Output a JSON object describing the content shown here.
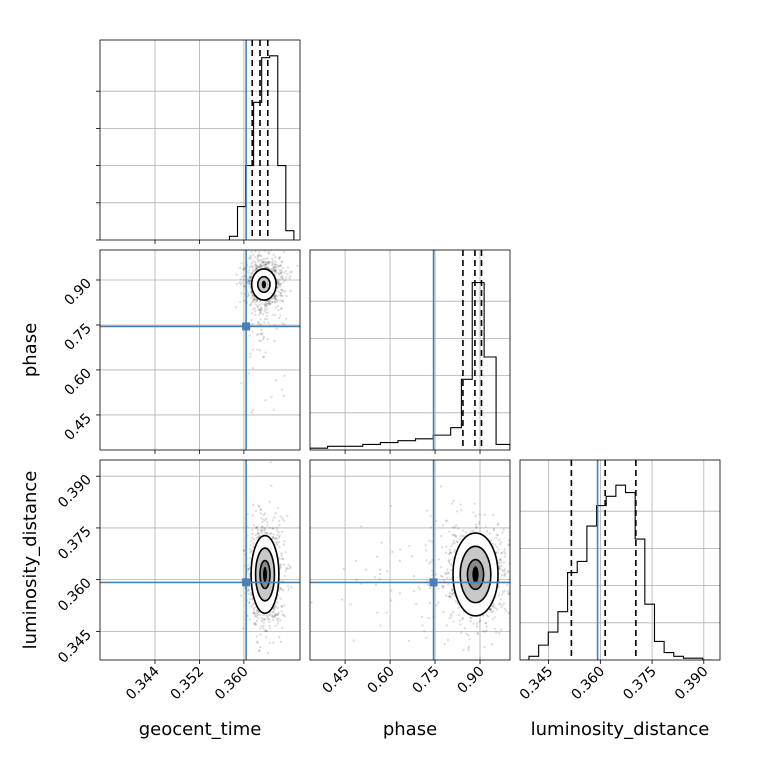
{
  "chart_data": {
    "type": "corner",
    "parameters": [
      "geocent_time",
      "phase",
      "luminosity_distance"
    ],
    "axis_labels": {
      "geocent_time": "geocent_time",
      "phase": "phase",
      "luminosity_distance": "luminosity_distance"
    },
    "ranges": {
      "geocent_time": [
        0.3341,
        0.3701
      ],
      "phase": [
        0.333,
        1.0
      ],
      "luminosity_distance": [
        0.3367,
        0.3947
      ]
    },
    "ticks": {
      "geocent_time": [
        0.344,
        0.352,
        0.36
      ],
      "phase": [
        0.45,
        0.6,
        0.75,
        0.9
      ],
      "luminosity_distance": [
        0.345,
        0.36,
        0.375,
        0.39
      ]
    },
    "tick_labels": {
      "geocent_time": [
        "0.344",
        "0.352",
        "0.360"
      ],
      "phase": [
        "0.45",
        "0.60",
        "0.75",
        "0.90"
      ],
      "luminosity_distance": [
        "0.345",
        "0.360",
        "0.375",
        "0.390"
      ]
    },
    "truths": {
      "geocent_time": 0.3604,
      "phase": 0.745,
      "luminosity_distance": 0.3592
    },
    "quantiles": {
      "geocent_time": [
        0.3615,
        0.3629,
        0.3643
      ],
      "phase": [
        0.843,
        0.883,
        0.905
      ],
      "luminosity_distance": [
        0.3516,
        0.3614,
        0.3703
      ]
    },
    "histograms": {
      "geocent_time": {
        "edges": [
          0.3574,
          0.35885,
          0.3603,
          0.36175,
          0.3632,
          0.36465,
          0.3661,
          0.36755,
          0.369
        ],
        "counts": [
          0.02,
          0.18,
          0.4,
          0.74,
          0.98,
          0.99,
          0.4,
          0.05
        ]
      },
      "phase": {
        "edges": [
          0.333,
          0.3917,
          0.4503,
          0.509,
          0.5676,
          0.6263,
          0.6849,
          0.7436,
          0.8022,
          0.8379,
          0.8741,
          0.9137,
          0.9536,
          1.0
        ],
        "counts": [
          0.01,
          0.02,
          0.02,
          0.03,
          0.04,
          0.05,
          0.06,
          0.08,
          0.12,
          0.38,
          0.9,
          0.5,
          0.03
        ]
      },
      "luminosity_distance": {
        "edges": [
          0.3367,
          0.3393,
          0.3421,
          0.3449,
          0.3477,
          0.3505,
          0.3533,
          0.3561,
          0.3589,
          0.3617,
          0.3645,
          0.3673,
          0.3701,
          0.3729,
          0.3757,
          0.3785,
          0.3813,
          0.3841,
          0.3869,
          0.3897,
          0.3925
        ],
        "counts": [
          0.0,
          0.02,
          0.08,
          0.15,
          0.26,
          0.47,
          0.53,
          0.72,
          0.83,
          0.88,
          0.94,
          0.9,
          0.65,
          0.3,
          0.1,
          0.04,
          0.02,
          0.01,
          0.01,
          0.0
        ]
      }
    },
    "contours_2d": [
      {
        "x": "geocent_time",
        "y": "phase",
        "center": [
          0.3636,
          0.885
        ],
        "sigma": [
          0.0011,
          0.026
        ],
        "levels": [
          1.0,
          2.0
        ],
        "background_scatter_spread": [
          0.0018,
          0.15
        ]
      },
      {
        "x": "geocent_time",
        "y": "luminosity_distance",
        "center": [
          0.3638,
          0.3615
        ],
        "sigma": [
          0.001,
          0.0045
        ],
        "levels": [
          0.9,
          1.7,
          2.5
        ],
        "background_scatter_spread": [
          0.0018,
          0.009
        ]
      },
      {
        "x": "phase",
        "y": "luminosity_distance",
        "center": [
          0.885,
          0.3615
        ],
        "sigma": [
          0.03,
          0.0048
        ],
        "levels": [
          0.9,
          1.7,
          2.5
        ],
        "background_scatter_spread": [
          0.2,
          0.009
        ]
      }
    ],
    "grid": true
  }
}
